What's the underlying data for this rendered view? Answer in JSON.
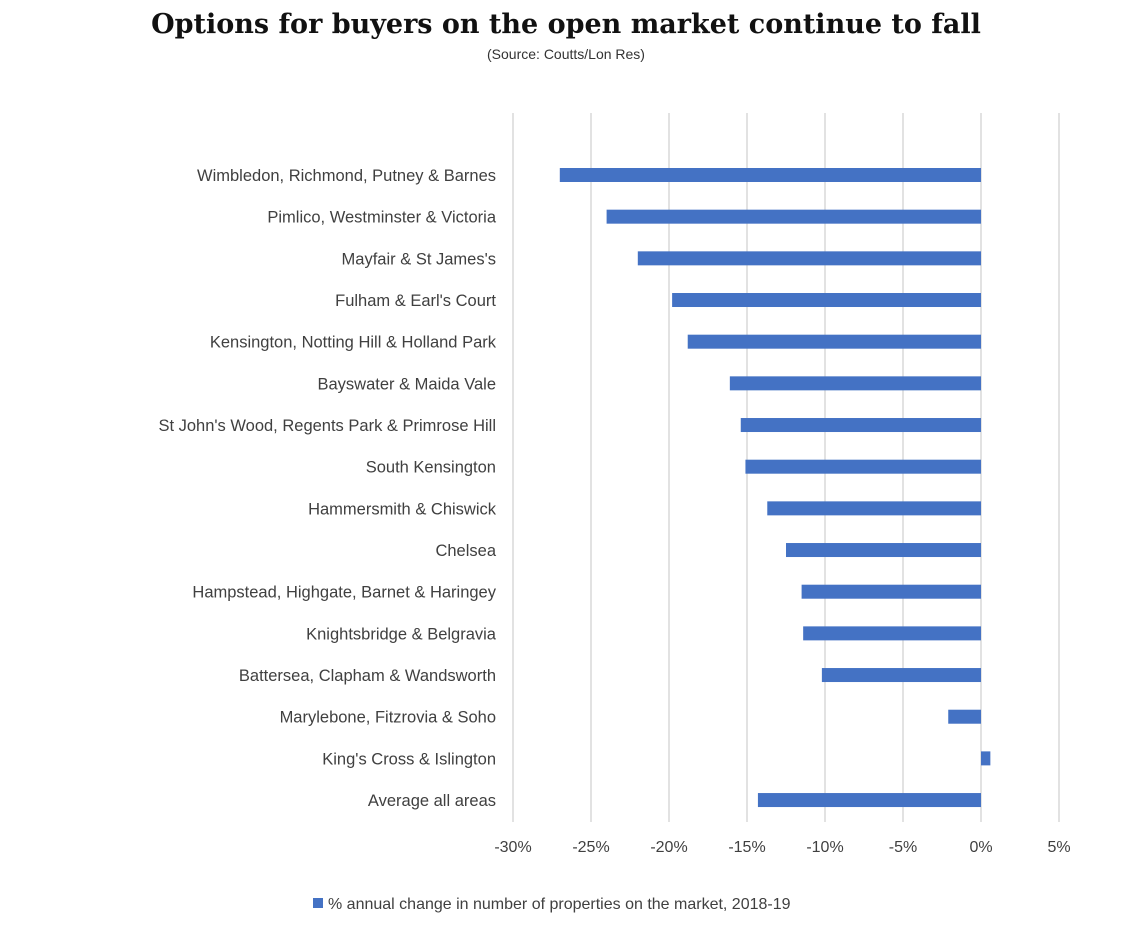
{
  "chart_data": {
    "type": "bar",
    "orientation": "horizontal",
    "title": "Options for buyers on the open market continue to fall",
    "subtitle": "(Source: Coutts/Lon Res)",
    "categories": [
      "Wimbledon, Richmond, Putney & Barnes",
      "Pimlico, Westminster & Victoria",
      "Mayfair & St James's",
      "Fulham & Earl's Court",
      "Kensington, Notting Hill & Holland Park",
      "Bayswater & Maida Vale",
      "St John's Wood, Regents Park & Primrose Hill",
      "South Kensington",
      "Hammersmith & Chiswick",
      "Chelsea",
      "Hampstead, Highgate, Barnet & Haringey",
      "Knightsbridge & Belgravia",
      "Battersea, Clapham & Wandsworth",
      "Marylebone, Fitzrovia & Soho",
      "King's Cross & Islington",
      "Average all areas"
    ],
    "series": [
      {
        "name": "% annual change in number of properties on the market, 2018-19",
        "color": "#4472c4",
        "values": [
          -27.0,
          -24.0,
          -22.0,
          -19.8,
          -18.8,
          -16.1,
          -15.4,
          -15.1,
          -13.7,
          -12.5,
          -11.5,
          -11.4,
          -10.2,
          -2.1,
          0.6,
          -14.3
        ]
      }
    ],
    "xlim": [
      -30,
      5
    ],
    "xticks": [
      -30,
      -25,
      -20,
      -15,
      -10,
      -5,
      0,
      5
    ],
    "xtick_labels": [
      "-30%",
      "-25%",
      "-20%",
      "-15%",
      "-10%",
      "-5%",
      "0%",
      "5%"
    ],
    "grid": "vertical",
    "legend_position": "bottom"
  }
}
